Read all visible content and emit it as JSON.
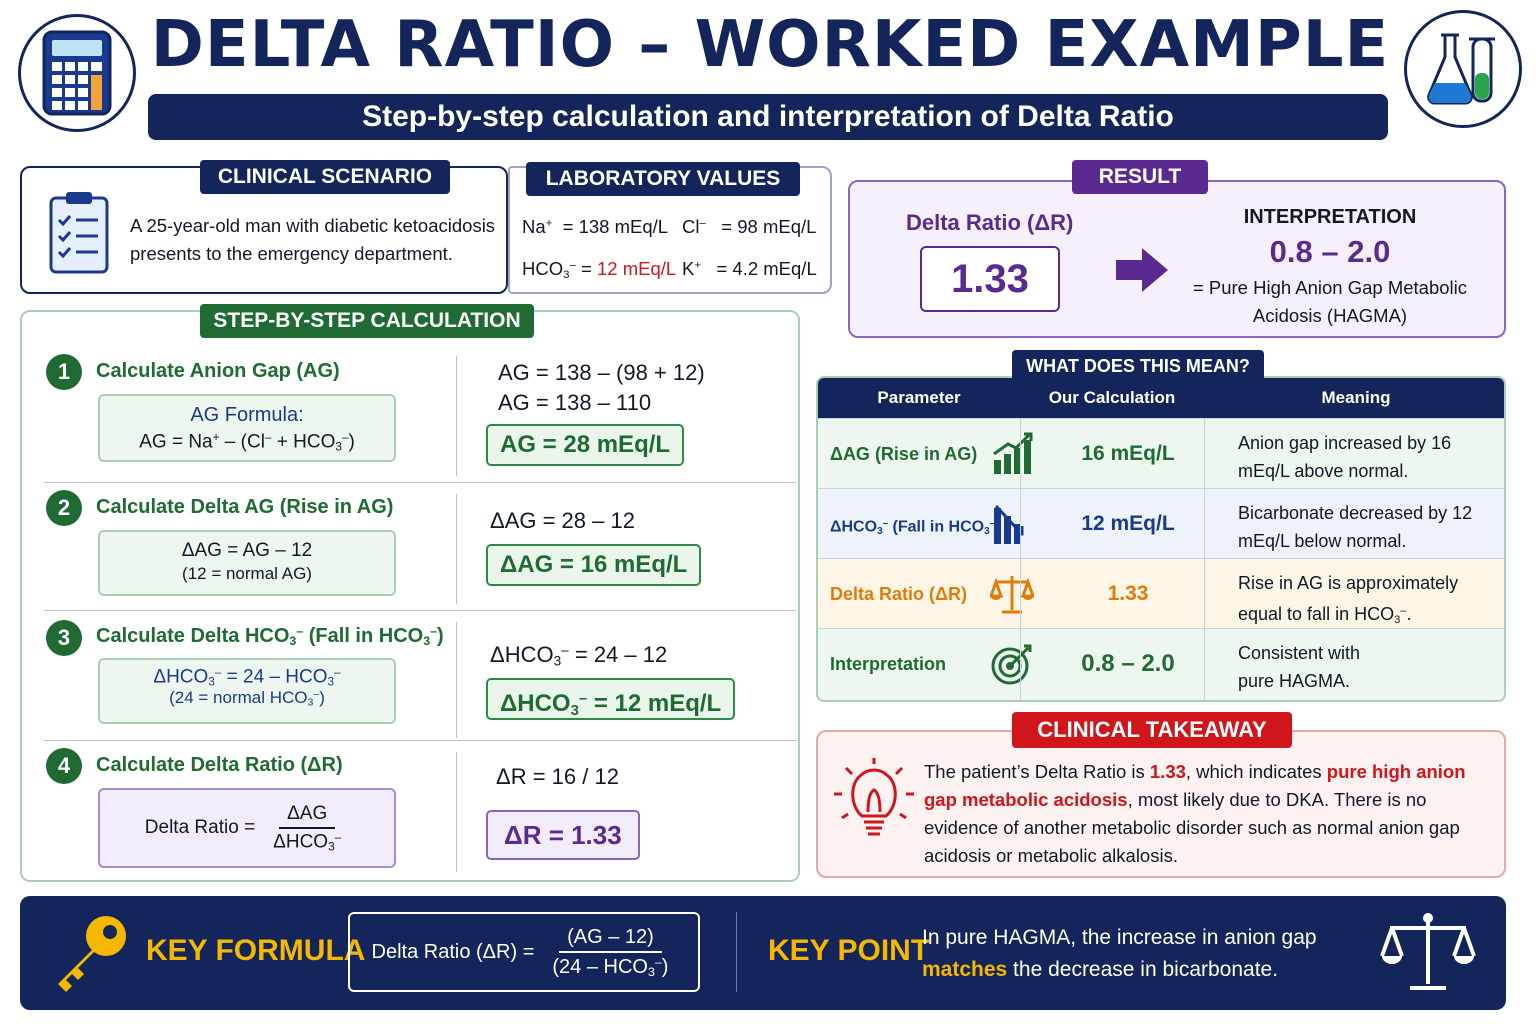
{
  "header": {
    "title": "DELTA RATIO – WORKED EXAMPLE",
    "subtitle": "Step-by-step calculation and interpretation of Delta Ratio",
    "left_icon": "calculator-icon",
    "right_icon": "flasks-icon"
  },
  "scenario": {
    "tag": "CLINICAL SCENARIO",
    "icon": "clipboard-checklist-icon",
    "text": "A 25-year-old man with diabetic ketoacidosis presents to the emergency department."
  },
  "labs": {
    "tag": "LABORATORY VALUES",
    "na_label": "Na",
    "na_value": "= 138 mEq/L",
    "cl_label": "Cl",
    "cl_value": "= 98 mEq/L",
    "hco3_label": "HCO",
    "hco3_eq": "=",
    "hco3_value": "12 mEq/L",
    "k_label": "K",
    "k_value": "= 4.2 mEq/L"
  },
  "result": {
    "tag": "RESULT",
    "label": "Delta Ratio (ΔR)",
    "value": "1.33",
    "interp_title": "INTERPRETATION",
    "interp_range": "0.8 – 2.0",
    "interp_desc": "= Pure High Anion Gap Metabolic Acidosis (HAGMA)"
  },
  "steps": {
    "tag": "STEP-BY-STEP CALCULATION",
    "items": [
      {
        "num": "1",
        "title": "Calculate Anion Gap (AG)",
        "formula_title": "AG Formula:",
        "calc_1": "AG  =  138  –  (98  +  12)",
        "calc_2": "AG  =  138  –  110",
        "answer": "AG  =  28 mEq/L"
      },
      {
        "num": "2",
        "title": "Calculate Delta AG (Rise in AG)",
        "formula_line1": "ΔAG  =  AG  –  12",
        "formula_line2": "(12 = normal AG)",
        "calc_1": "ΔAG  =  28  –  12",
        "answer": "ΔAG  =  16 mEq/L"
      },
      {
        "num": "3",
        "title_a": "Calculate Delta HCO",
        "title_b": " (Fall in HCO",
        "calc_1_a": "ΔHCO",
        "calc_1_b": "  =  24  –  12",
        "answer_a": "ΔHCO",
        "answer_b": "  =  12 mEq/L",
        "formula_a": "ΔHCO",
        "formula_b": "  =  24  –  HCO",
        "formula_note_a": "(24 = normal HCO",
        "formula_note_b": ")"
      },
      {
        "num": "4",
        "title": "Calculate Delta Ratio (ΔR)",
        "formula_label": "Delta Ratio  =",
        "formula_num": "ΔAG",
        "formula_den": "ΔHCO",
        "calc_1": "ΔR  =  16  /  12",
        "answer": "ΔR  =  1.33"
      }
    ]
  },
  "table": {
    "tag": "WHAT DOES THIS MEAN?",
    "headers": [
      "Parameter",
      "Our Calculation",
      "Meaning"
    ],
    "rows": [
      {
        "param": "ΔAG (Rise in AG)",
        "calc": "16 mEq/L",
        "meaning": "Anion gap increased by 16 mEq/L above normal.",
        "icon": "bar-chart-rising-icon",
        "color": "#1f6b33"
      },
      {
        "param_a": "ΔHCO",
        "param_b": " (Fall in HCO",
        "calc": "12 mEq/L",
        "meaning": "Bicarbonate decreased by 12 mEq/L below normal.",
        "icon": "bar-chart-falling-icon",
        "color": "#1a3a8f"
      },
      {
        "param": "Delta Ratio (ΔR)",
        "calc": "1.33",
        "meaning_a": "Rise in AG is approximately equal to fall in HCO",
        "meaning_b": ".",
        "icon": "balance-scale-icon",
        "color": "#e07b0c"
      },
      {
        "param": "Interpretation",
        "calc": "0.8 – 2.0",
        "meaning": "Consistent with pure HAGMA.",
        "icon": "target-icon",
        "color": "#1f6b33"
      }
    ]
  },
  "takeaway": {
    "tag": "CLINICAL TAKEAWAY",
    "icon": "lightbulb-icon",
    "text_1": "The patient’s Delta Ratio is ",
    "highlight_value": "1.33",
    "text_2": ", which indicates",
    "highlight_phrase": "pure high anion gap metabolic acidosis",
    "text_3": ", most likely due to DKA. There is no evidence of another metabolic disorder such as normal anion gap acidosis or metabolic alkalosis."
  },
  "footer": {
    "key_formula_label": "KEY FORMULA",
    "formula_label": "Delta Ratio (ΔR)  =",
    "formula_num": "(AG  –  12)",
    "formula_den_a": "(24  –  HCO",
    "formula_den_b": ")",
    "key_point_label": "KEY POINT",
    "key_point_1": "In pure HAGMA, the increase in anion gap",
    "key_point_highlight": "matches",
    "key_point_2": " the decrease in bicarbonate.",
    "key_icon": "key-icon",
    "scale_icon": "balance-scale-icon"
  },
  "colors": {
    "navy": "#13255a",
    "green": "#1f6b33",
    "purple": "#5b2a91",
    "red": "#d1161b",
    "gold": "#f5b800"
  }
}
